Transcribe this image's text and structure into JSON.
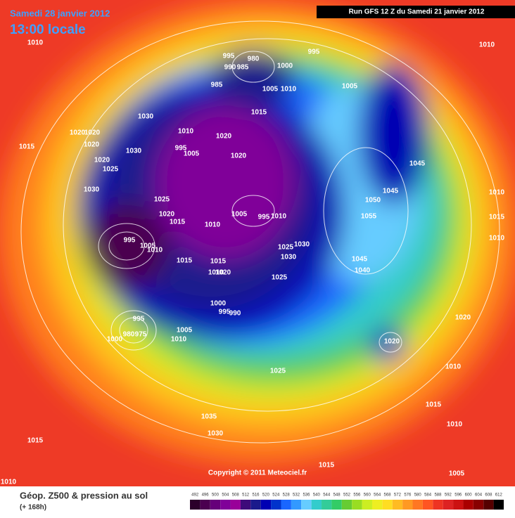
{
  "header": {
    "date": "Samedi 28 janvier 2012",
    "time": "13:00 locale",
    "run": "Run GFS 12 Z du Samedi 21 janvier 2012"
  },
  "pressure_labels": [
    "1010",
    "995",
    "980",
    "990",
    "985",
    "995",
    "1000",
    "985",
    "1005",
    "1010",
    "1005",
    "1010",
    "1015",
    "1030",
    "1020",
    "1020",
    "1015",
    "1020",
    "1010",
    "1020",
    "995",
    "1005",
    "1030",
    "1020",
    "1025",
    "1020",
    "1045",
    "1030",
    "1045",
    "1010",
    "1050",
    "1025",
    "1005",
    "995",
    "1010",
    "1055",
    "1015",
    "1020",
    "1015",
    "1010",
    "995",
    "1005",
    "1010",
    "1010",
    "1030",
    "1025",
    "1030",
    "1015",
    "1015",
    "1045",
    "1040",
    "1010",
    "1020",
    "1025",
    "1000",
    "995",
    "990",
    "995",
    "980",
    "975",
    "1000",
    "1005",
    "1010",
    "1020",
    "1020",
    "1025",
    "1010",
    "1015",
    "1035",
    "1030",
    "1010",
    "1015",
    "1015",
    "1005",
    "1010"
  ],
  "footer": {
    "title": "Géop. Z500 & pression au sol",
    "lead": "(+ 168h)",
    "copyright": "Copyright © 2011 Meteociel.fr"
  },
  "scale": {
    "labels": [
      "492",
      "496",
      "500",
      "504",
      "508",
      "512",
      "516",
      "520",
      "524",
      "528",
      "532",
      "536",
      "540",
      "544",
      "548",
      "552",
      "556",
      "560",
      "564",
      "568",
      "572",
      "576",
      "580",
      "584",
      "588",
      "592",
      "596",
      "600",
      "604",
      "608",
      "612"
    ],
    "colors": [
      "#2b002b",
      "#4b0050",
      "#66007a",
      "#800099",
      "#990099",
      "#3d0a7a",
      "#1a1a8c",
      "#0000b3",
      "#0033cc",
      "#1a66ff",
      "#3399ff",
      "#66ccff",
      "#33cccc",
      "#33cc99",
      "#33cc66",
      "#66cc33",
      "#99dd22",
      "#ccee22",
      "#eeee22",
      "#ffdd22",
      "#ffbb22",
      "#ff9922",
      "#ff7722",
      "#ff5522",
      "#ee3322",
      "#dd2222",
      "#cc1111",
      "#aa0000",
      "#880000",
      "#550000",
      "#000000"
    ]
  }
}
